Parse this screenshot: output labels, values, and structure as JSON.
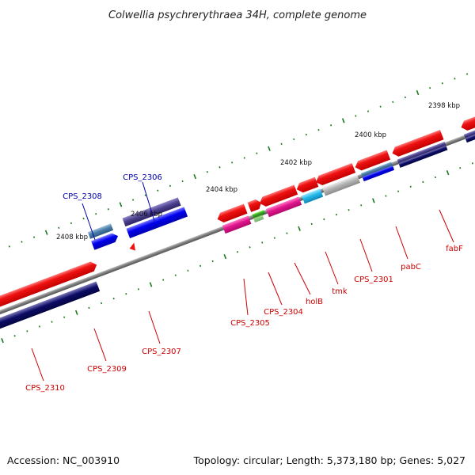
{
  "title": "Colwellia psychrerythraea 34H, complete genome",
  "accession": "Accession: NC_003910",
  "summary": "Topology: circular; Length: 5,373,180 bp; Genes: 5,027",
  "scale_labels": [
    "2398 kbp",
    "2400 kbp",
    "2402 kbp",
    "2404 kbp",
    "2406 kbp",
    "2408 kbp"
  ],
  "gene_labels": [
    {
      "text": "CPS_2308",
      "color": "#0000aa"
    },
    {
      "text": "CPS_2306",
      "color": "#0000aa"
    },
    {
      "text": "fabF",
      "color": "#cc0000"
    },
    {
      "text": "pabC",
      "color": "#cc0000"
    },
    {
      "text": "CPS_2301",
      "color": "#cc0000"
    },
    {
      "text": "tmk",
      "color": "#cc0000"
    },
    {
      "text": "holB",
      "color": "#cc0000"
    },
    {
      "text": "CPS_2304",
      "color": "#cc0000"
    },
    {
      "text": "CPS_2305",
      "color": "#cc0000"
    },
    {
      "text": "CPS_2307",
      "color": "#cc0000"
    },
    {
      "text": "CPS_2309",
      "color": "#cc0000"
    },
    {
      "text": "CPS_2310",
      "color": "#cc0000"
    }
  ],
  "colors": {
    "backbone": "#808080",
    "tick": "#1a7a1a",
    "forward_strand": "#ee1111",
    "reverse_strand": "#0000ee",
    "reverse_dark": "#0b0b66",
    "magenta": "#e0148c",
    "cyan": "#21b8ea",
    "grey_gene": "#b4b4b4",
    "green": "#33aa22",
    "purple": "#4a3f8c"
  }
}
